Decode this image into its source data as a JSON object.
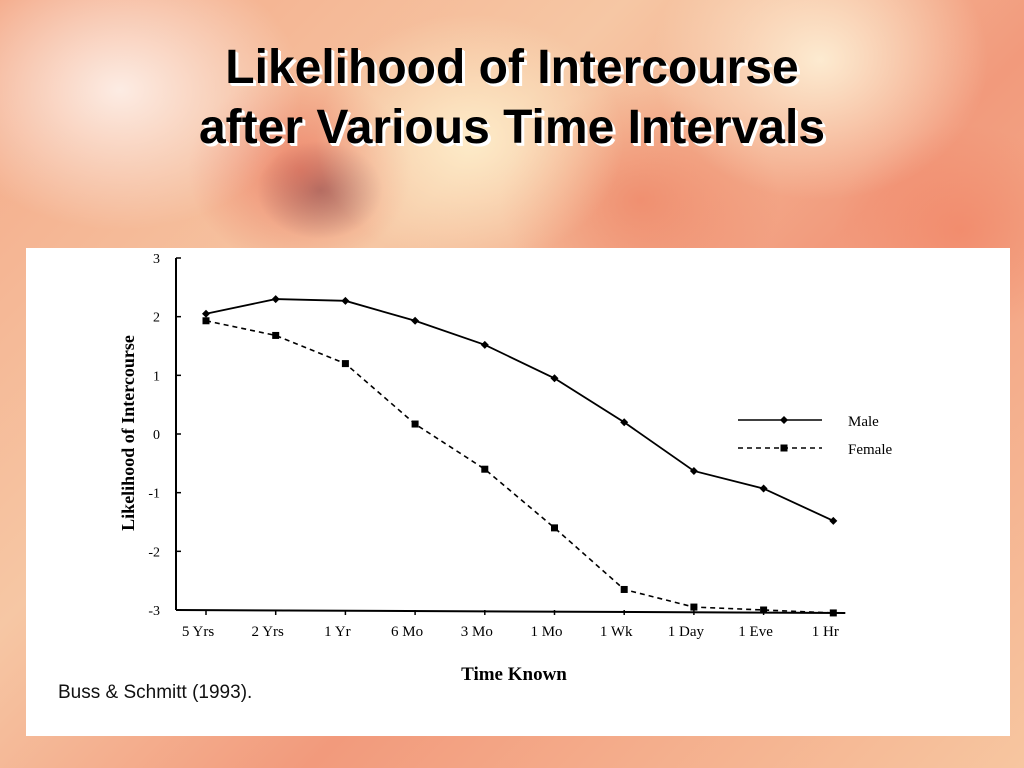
{
  "slide": {
    "title_line1": "Likelihood of Intercourse",
    "title_line2": "after Various Time Intervals",
    "citation": "Buss & Schmitt (1993)."
  },
  "colors": {
    "line": "#000000",
    "panel": "#ffffff"
  },
  "chart_data": {
    "type": "line",
    "categories": [
      "5 Yrs",
      "2 Yrs",
      "1 Yr",
      "6 Mo",
      "3 Mo",
      "1 Mo",
      "1 Wk",
      "1 Day",
      "1 Eve",
      "1 Hr"
    ],
    "series": [
      {
        "name": "Male",
        "style": "solid",
        "marker": "diamond",
        "values": [
          2.05,
          2.3,
          2.27,
          1.93,
          1.52,
          0.95,
          0.2,
          -0.63,
          -0.93,
          -1.48
        ]
      },
      {
        "name": "Female",
        "style": "dashed",
        "marker": "square",
        "values": [
          1.93,
          1.68,
          1.2,
          0.17,
          -0.6,
          -1.6,
          -2.65,
          -2.95,
          -3.0,
          -3.05
        ]
      }
    ],
    "ylim": [
      -3,
      3
    ],
    "yticks": [
      "3",
      "2",
      "1",
      "0",
      "-1",
      "-2",
      "-3"
    ],
    "xlabel": "Time Known",
    "ylabel": "Likelihood of Intercourse",
    "legend_position": "right",
    "grid": false
  }
}
